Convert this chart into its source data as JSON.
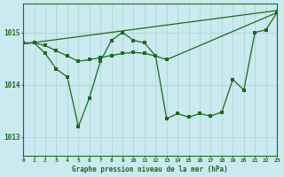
{
  "title": "Graphe pression niveau de la mer (hPa)",
  "bg_color": "#cbe9f0",
  "grid_color": "#b0d8cc",
  "line_color": "#1a6b1a",
  "xlim": [
    0,
    23
  ],
  "ylim": [
    1012.65,
    1015.55
  ],
  "yticks": [
    1013,
    1014,
    1015
  ],
  "xticks": [
    0,
    1,
    2,
    3,
    4,
    5,
    6,
    7,
    8,
    9,
    10,
    11,
    12,
    13,
    14,
    15,
    16,
    17,
    18,
    19,
    20,
    21,
    22,
    23
  ],
  "series1_x": [
    0,
    1,
    2,
    3,
    4,
    5,
    6,
    7,
    8,
    9,
    10,
    11,
    12,
    13,
    23
  ],
  "series1_y": [
    1014.8,
    1014.8,
    1014.75,
    1014.65,
    1014.55,
    1014.45,
    1014.48,
    1014.52,
    1014.56,
    1014.6,
    1014.62,
    1014.6,
    1014.55,
    1014.48,
    1015.38
  ],
  "series2_x": [
    0,
    1,
    2,
    3,
    4,
    5,
    6,
    7,
    8,
    9,
    10,
    11,
    12,
    13,
    14,
    15,
    16,
    17,
    18,
    19,
    20,
    21,
    22,
    23
  ],
  "series2_y": [
    1014.8,
    1014.8,
    1014.6,
    1014.3,
    1014.15,
    1013.2,
    1013.75,
    1014.45,
    1014.85,
    1015.0,
    1014.85,
    1014.8,
    1014.55,
    1013.35,
    1013.45,
    1013.38,
    1013.45,
    1013.4,
    1013.48,
    1014.1,
    1013.9,
    1015.0,
    1015.05,
    1015.38
  ],
  "series3_x": [
    0,
    23
  ],
  "series3_y": [
    1014.78,
    1015.42
  ]
}
